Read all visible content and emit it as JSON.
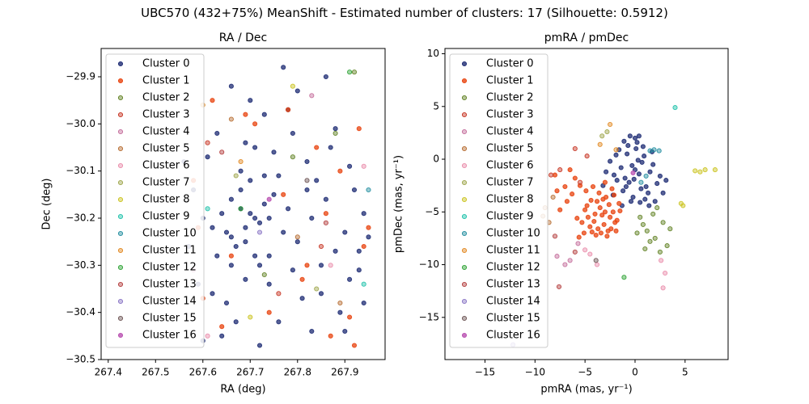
{
  "figure": {
    "title": "UBC570 (432+75%) MeanShift - Estimated number of clusters: 17 (Silhouette: 0.5912)"
  },
  "clusters": [
    {
      "name": "Cluster 0",
      "color": "#1d2b73"
    },
    {
      "name": "Cluster 1",
      "color": "#e8430e"
    },
    {
      "name": "Cluster 2",
      "color": "#5e7f1f"
    },
    {
      "name": "Cluster 3",
      "color": "#c5301e"
    },
    {
      "name": "Cluster 4",
      "color": "#c36b9a"
    },
    {
      "name": "Cluster 5",
      "color": "#b56a2e"
    },
    {
      "name": "Cluster 6",
      "color": "#e98aa8"
    },
    {
      "name": "Cluster 7",
      "color": "#9da54a"
    },
    {
      "name": "Cluster 8",
      "color": "#c9c21a"
    },
    {
      "name": "Cluster 9",
      "color": "#1bc0a9"
    },
    {
      "name": "Cluster 10",
      "color": "#1f8c9e"
    },
    {
      "name": "Cluster 11",
      "color": "#e1861c"
    },
    {
      "name": "Cluster 12",
      "color": "#2aa131"
    },
    {
      "name": "Cluster 13",
      "color": "#b23a3a"
    },
    {
      "name": "Cluster 14",
      "color": "#8873c4"
    },
    {
      "name": "Cluster 15",
      "color": "#6b5252"
    },
    {
      "name": "Cluster 16",
      "color": "#b84fb0"
    }
  ],
  "chart_data": [
    {
      "type": "scatter",
      "title": "RA / Dec",
      "xlabel": "RA (deg)",
      "ylabel": "Dec (deg)",
      "xlim": [
        267.385,
        267.985
      ],
      "ylim": [
        -30.5,
        -29.84
      ],
      "xticks": [
        267.4,
        267.5,
        267.6,
        267.7,
        267.8,
        267.9
      ],
      "yticks": [
        -29.9,
        -30.0,
        -30.1,
        -30.2,
        -30.3,
        -30.4,
        -30.5
      ],
      "xtick_labels": [
        "267.4",
        "267.5",
        "267.6",
        "267.7",
        "267.8",
        "267.9"
      ],
      "ytick_labels": [
        "−29.9",
        "−30.0",
        "−30.1",
        "−30.2",
        "−30.3",
        "−30.4",
        "−30.5"
      ],
      "legend": "upper left",
      "grid": false,
      "series": [
        {
          "cluster": 0,
          "x": [
            267.71,
            267.69,
            267.68,
            267.66,
            267.72,
            267.73,
            267.65,
            267.7,
            267.67,
            267.74,
            267.75,
            267.64,
            267.71,
            267.68,
            267.69,
            267.62,
            267.77,
            267.7,
            267.66,
            267.72,
            267.78,
            267.6,
            267.8,
            267.63,
            267.76,
            267.69,
            267.58,
            267.83,
            267.86,
            267.9,
            267.94,
            267.61,
            267.74,
            267.82,
            267.88,
            267.92,
            267.95,
            267.65,
            267.71,
            267.79,
            267.84,
            267.57,
            267.67,
            267.73,
            267.81,
            267.87,
            267.93,
            267.7,
            267.76,
            267.85,
            267.91,
            267.6,
            267.66,
            267.78,
            267.89,
            267.63,
            267.72,
            267.8,
            267.83,
            267.94,
            267.68,
            267.75,
            267.86,
            267.59,
            267.64,
            267.77,
            267.9,
            267.74,
            267.82,
            267.93,
            267.62,
            267.69,
            267.88,
            267.56,
            267.73,
            267.85,
            267.66,
            267.79,
            267.91
          ],
          "y": [
            -30.2,
            -30.22,
            -30.18,
            -30.24,
            -30.21,
            -30.17,
            -30.23,
            -30.19,
            -30.26,
            -30.2,
            -30.15,
            -30.19,
            -30.28,
            -30.14,
            -30.25,
            -30.22,
            -30.23,
            -30.12,
            -30.16,
            -30.3,
            -30.18,
            -30.2,
            -30.25,
            -30.28,
            -30.11,
            -30.33,
            -30.14,
            -30.2,
            -30.16,
            -30.23,
            -30.19,
            -30.07,
            -30.34,
            -30.08,
            -30.27,
            -30.14,
            -30.24,
            -30.38,
            -30.05,
            -30.31,
            -30.12,
            -30.26,
            -30.42,
            -29.98,
            -30.37,
            -30.05,
            -30.31,
            -29.95,
            -30.42,
            -30.36,
            -30.09,
            -30.46,
            -29.92,
            -29.97,
            -30.4,
            -30.02,
            -30.47,
            -29.93,
            -30.44,
            -30.38,
            -30.1,
            -30.06,
            -29.9,
            -30.34,
            -30.45,
            -29.88,
            -30.44,
            -30.28,
            -30.14,
            -30.27,
            -30.36,
            -30.04,
            -30.01,
            -30.08,
            -30.11,
            -30.3,
            -30.3,
            -30.02,
            -30.33
          ]
        },
        {
          "cluster": 1,
          "x": [
            267.62,
            267.71,
            267.84,
            267.93,
            267.58,
            267.77,
            267.89,
            267.66,
            267.95,
            267.81,
            267.6,
            267.74,
            267.87,
            267.92,
            267.69,
            267.82,
            267.59,
            267.94,
            267.78,
            267.64,
            267.86,
            267.91
          ],
          "y": [
            -29.95,
            -30.0,
            -30.05,
            -30.01,
            -30.12,
            -30.15,
            -30.1,
            -30.28,
            -30.22,
            -30.33,
            -30.37,
            -30.4,
            -30.45,
            -30.47,
            -29.98,
            -30.3,
            -30.22,
            -30.26,
            -29.97,
            -30.43,
            -30.19,
            -30.41
          ]
        },
        {
          "cluster": 2,
          "x": [
            267.79,
            267.88,
            267.73,
            267.92
          ],
          "y": [
            -30.07,
            -30.02,
            -30.32,
            -29.89
          ]
        },
        {
          "cluster": 3,
          "x": [
            267.61,
            267.76,
            267.85
          ],
          "y": [
            -30.04,
            -30.36,
            -30.26
          ]
        },
        {
          "cluster": 4,
          "x": [
            267.83,
            267.58
          ],
          "y": [
            -29.94,
            -30.31
          ]
        },
        {
          "cluster": 5,
          "x": [
            267.66,
            267.8,
            267.89
          ],
          "y": [
            -29.99,
            -30.24,
            -30.38
          ]
        },
        {
          "cluster": 6,
          "x": [
            267.87,
            267.61,
            267.94
          ],
          "y": [
            -30.3,
            -30.45,
            -30.09
          ]
        },
        {
          "cluster": 7,
          "x": [
            267.67,
            267.84
          ],
          "y": [
            -30.11,
            -30.35
          ]
        },
        {
          "cluster": 8,
          "x": [
            267.79,
            267.7
          ],
          "y": [
            -29.92,
            -30.41
          ]
        },
        {
          "cluster": 9,
          "x": [
            267.61,
            267.94
          ],
          "y": [
            -30.18,
            -30.34
          ]
        },
        {
          "cluster": 10,
          "x": [
            267.95
          ],
          "y": [
            -30.14
          ]
        },
        {
          "cluster": 11,
          "x": [
            267.6,
            267.68
          ],
          "y": [
            -29.96,
            -30.08
          ]
        },
        {
          "cluster": 12,
          "x": [
            267.91,
            267.68
          ],
          "y": [
            -29.89,
            -30.18
          ]
        },
        {
          "cluster": 13,
          "x": [
            267.86,
            267.64
          ],
          "y": [
            -30.21,
            -30.06
          ]
        },
        {
          "cluster": 14,
          "x": [
            267.72
          ],
          "y": [
            -30.23
          ]
        },
        {
          "cluster": 15,
          "x": [
            267.82
          ],
          "y": [
            -30.12
          ]
        },
        {
          "cluster": 16,
          "x": [
            267.74
          ],
          "y": [
            -30.16
          ]
        }
      ]
    },
    {
      "type": "scatter",
      "title": "pmRA / pmDec",
      "xlabel": "pmRA (mas, yr⁻¹)",
      "ylabel": "pmDec (mas, yr⁻¹)",
      "xlim": [
        -19.0,
        9.3
      ],
      "ylim": [
        -19.0,
        10.5
      ],
      "xticks": [
        -15,
        -10,
        -5,
        0,
        5
      ],
      "yticks": [
        10,
        5,
        0,
        -5,
        -10,
        -15
      ],
      "xtick_labels": [
        "−15",
        "−10",
        "−5",
        "0",
        "5"
      ],
      "ytick_labels": [
        "10",
        "5",
        "0",
        "−5",
        "−10",
        "−15"
      ],
      "legend": "upper left",
      "grid": false,
      "series": [
        {
          "cluster": 0,
          "x": [
            0.0,
            -0.3,
            0.4,
            -0.6,
            0.7,
            -1.0,
            1.1,
            -1.4,
            1.5,
            -1.8,
            1.8,
            -2.1,
            2.2,
            -0.8,
            0.9,
            -1.2,
            1.3,
            0.1,
            -0.2,
            0.5,
            -2.5,
            2.5,
            -1.6,
            1.7,
            -0.4,
            0.2,
            -2.9,
            2.8,
            0.6,
            -0.9,
            1.0,
            -0.1,
            0.3,
            -1.3,
            1.4,
            -2.2,
            2.0,
            -0.7,
            0.8,
            -1.9,
            3.1,
            -3.2,
            0.0,
            -0.5,
            0.4,
            -1.1
          ],
          "y": [
            -1.0,
            -0.6,
            -1.4,
            -2.2,
            -0.3,
            -1.8,
            -2.6,
            -0.8,
            -1.2,
            -2.0,
            -0.5,
            -1.5,
            -2.3,
            0.5,
            0.3,
            -3.0,
            -3.2,
            1.0,
            -3.6,
            -4.1,
            -0.2,
            -1.6,
            0.9,
            0.7,
            -4.0,
            1.6,
            -1.2,
            -3.2,
            -2.8,
            -2.6,
            -3.8,
            -1.9,
            -0.1,
            -4.4,
            -4.4,
            -3.4,
            -4.0,
            1.3,
            1.2,
            0.4,
            -2.0,
            -2.5,
            2.0,
            2.2,
            2.2,
            1.7
          ]
        },
        {
          "cluster": 1,
          "x": [
            -3.0,
            -2.5,
            -3.5,
            -2.0,
            -4.0,
            -1.6,
            -4.5,
            -3.2,
            -2.7,
            -3.8,
            -2.2,
            -4.3,
            -1.8,
            -5.0,
            -3.4,
            -2.9,
            -4.1,
            -2.4,
            -3.6,
            -1.5,
            -4.7,
            -3.1,
            -2.6,
            -3.9,
            -5.3,
            -2.1,
            -4.4,
            -3.3,
            -1.9,
            -4.8,
            -3.7,
            -2.8,
            -5.5,
            -6.0,
            -6.5,
            -7.0,
            -7.5,
            -8.0,
            -6.8,
            -7.8,
            -5.8,
            -6.3,
            -5.1,
            -5.6,
            -4.9,
            -4.2,
            -3.0,
            -2.3
          ],
          "y": [
            -5.0,
            -5.5,
            -4.6,
            -6.0,
            -5.2,
            -4.2,
            -6.4,
            -3.8,
            -6.8,
            -4.0,
            -5.0,
            -6.9,
            -5.8,
            -4.8,
            -7.0,
            -3.6,
            -5.9,
            -6.6,
            -3.2,
            -4.9,
            -5.5,
            -6.2,
            -4.3,
            -7.2,
            -6.0,
            -3.4,
            -3.9,
            -5.3,
            -6.8,
            -4.4,
            -6.6,
            -7.3,
            -2.5,
            -1.8,
            -1.0,
            -2.6,
            -4.8,
            -1.5,
            -4.0,
            -3.0,
            -5.6,
            -3.3,
            -7.0,
            -7.4,
            -3.0,
            -2.6,
            -2.2,
            -2.8
          ]
        },
        {
          "cluster": 2,
          "x": [
            0.5,
            1.2,
            2.0,
            2.8,
            3.2,
            1.0,
            1.8,
            2.5,
            0.2,
            3.5,
            2.2,
            1.5,
            0.8
          ],
          "y": [
            -5.5,
            -6.8,
            -7.5,
            -6.0,
            -8.2,
            -8.5,
            -5.2,
            -8.8,
            -7.0,
            -6.6,
            -4.6,
            -7.8,
            -6.2
          ]
        },
        {
          "cluster": 3,
          "x": [
            -6.0,
            -7.5,
            -5.5,
            -8.4,
            -4.8
          ],
          "y": [
            1.0,
            -1.0,
            -2.2,
            -1.5,
            0.3
          ]
        },
        {
          "cluster": 4,
          "x": [
            -7.8,
            -6.5,
            -5.7,
            -7.0
          ],
          "y": [
            -9.2,
            -9.6,
            -8.0,
            -10.0
          ]
        },
        {
          "cluster": 5,
          "x": [
            -9.0,
            -8.6,
            -8.2,
            -9.2
          ],
          "y": [
            -4.6,
            -6.0,
            -3.6,
            -5.4
          ]
        },
        {
          "cluster": 6,
          "x": [
            -4.5,
            -3.8,
            2.6,
            3.0,
            2.8,
            -5.0
          ],
          "y": [
            -9.0,
            -10.0,
            -9.6,
            -10.8,
            -12.2,
            -8.6
          ]
        },
        {
          "cluster": 7,
          "x": [
            -2.8,
            -3.3
          ],
          "y": [
            2.6,
            2.2
          ]
        },
        {
          "cluster": 8,
          "x": [
            6.0,
            7.0,
            8.0,
            6.5,
            4.6,
            4.8
          ],
          "y": [
            -1.1,
            -1.0,
            -1.0,
            -1.2,
            -4.2,
            -4.4
          ]
        },
        {
          "cluster": 9,
          "x": [
            4.0
          ],
          "y": [
            4.9
          ]
        },
        {
          "cluster": 10,
          "x": [
            1.5,
            1.9,
            2.4,
            0.6,
            1.1
          ],
          "y": [
            0.8,
            0.9,
            0.8,
            -2.2,
            -1.6
          ]
        },
        {
          "cluster": 11,
          "x": [
            -2.5,
            -3.5,
            -1.9
          ],
          "y": [
            3.3,
            1.4,
            0.9
          ]
        },
        {
          "cluster": 12,
          "x": [
            -1.1
          ],
          "y": [
            -11.2
          ]
        },
        {
          "cluster": 13,
          "x": [
            -7.6,
            -6.0,
            -8.0
          ],
          "y": [
            -12.1,
            -8.8,
            -7.3
          ]
        },
        {
          "cluster": 14,
          "x": [
            -12.2
          ],
          "y": [
            -17.6
          ]
        },
        {
          "cluster": 15,
          "x": [
            -3.9
          ],
          "y": [
            -9.6
          ]
        },
        {
          "cluster": 16,
          "x": [
            -0.2
          ],
          "y": [
            -1.3
          ]
        }
      ]
    }
  ]
}
